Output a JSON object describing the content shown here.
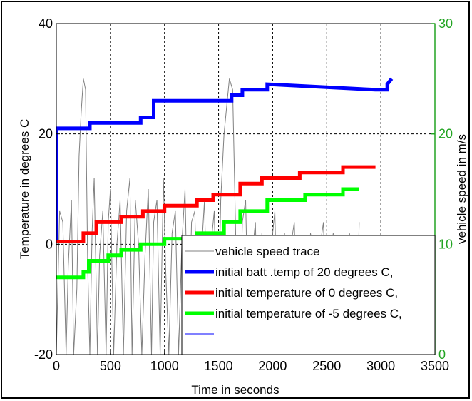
{
  "chart_data": {
    "type": "line",
    "xlabel": "Time in seconds",
    "ylabel_left": "Temperature in degrees C",
    "ylabel_right": "vehicle speed in m/s",
    "xlim": [
      0,
      3500
    ],
    "ylim_left": [
      -20,
      40
    ],
    "ylim_right": [
      0,
      30
    ],
    "x_ticks": [
      "0",
      "500",
      "1000",
      "1500",
      "2000",
      "2500",
      "3000",
      "3500"
    ],
    "y_ticks_left": [
      "-20",
      "0",
      "20",
      "40"
    ],
    "y_ticks_right": [
      "0",
      "10",
      "20",
      "30"
    ],
    "grid": true,
    "legend_position": "lower-right",
    "colors": {
      "speed": "#808080",
      "blue": "#0000ff",
      "red": "#ff0000",
      "green": "#00ff00",
      "right_axis": "#22a422"
    },
    "series": [
      {
        "name": "initial  batt .temp of 20 degrees C,",
        "color": "#0000ff",
        "axis": "left",
        "x": [
          0,
          0,
          10,
          310,
          310,
          780,
          780,
          900,
          900,
          1620,
          1620,
          1720,
          1720,
          1950,
          1950,
          2950,
          2950,
          3060,
          3060,
          3100
        ],
        "y": [
          0.5,
          21,
          21,
          21,
          22,
          22,
          23,
          23,
          26,
          26,
          27,
          27,
          28,
          28,
          29,
          28,
          28,
          28,
          29,
          30
        ]
      },
      {
        "name": "initial temperature of 0 degrees C,",
        "color": "#ff0000",
        "axis": "left",
        "x": [
          0,
          250,
          250,
          370,
          370,
          600,
          600,
          800,
          800,
          1000,
          1000,
          1300,
          1300,
          1450,
          1450,
          1700,
          1700,
          1900,
          1900,
          2250,
          2250,
          2650,
          2650,
          2950
        ],
        "y": [
          0.5,
          0.5,
          2,
          2,
          4,
          4,
          5,
          5,
          6,
          6,
          7,
          7,
          8,
          8,
          9,
          9,
          11,
          11,
          12,
          12,
          13,
          13,
          14,
          14
        ]
      },
      {
        "name": "initial temperature of -5 degrees C,",
        "color": "#00ff00",
        "axis": "left",
        "x": [
          0,
          250,
          250,
          300,
          300,
          480,
          480,
          600,
          600,
          780,
          780,
          1000,
          1000,
          1300,
          1300,
          1550,
          1550,
          1700,
          1700,
          1950,
          1950,
          2300,
          2300,
          2650,
          2650,
          2800
        ],
        "y": [
          -6,
          -6,
          -5,
          -5,
          -3,
          -3,
          -2,
          -2,
          -1,
          -1,
          0,
          0,
          1,
          1,
          2,
          2,
          4,
          4,
          6,
          6,
          8,
          8,
          9,
          9,
          10,
          10
        ]
      },
      {
        "name": "vehicle speed trace",
        "color": "#808080",
        "axis": "right",
        "x": [
          0,
          30,
          60,
          90,
          110,
          140,
          160,
          190,
          210,
          230,
          250,
          270,
          290,
          310,
          330,
          350,
          380,
          400,
          430,
          460,
          480,
          500,
          530,
          560,
          590,
          620,
          650,
          680,
          700,
          730,
          760,
          790,
          820,
          850,
          880,
          900,
          930,
          960,
          990,
          1010,
          1040,
          1070,
          1100,
          1130,
          1160,
          1190,
          1220,
          1250,
          1280,
          1310,
          1340,
          1370,
          1400,
          1430,
          1460,
          1490,
          1520,
          1550,
          1580,
          1600,
          1630,
          1660,
          1690,
          1720,
          1750,
          1780,
          1810,
          1840,
          1870,
          1900,
          1930,
          1960,
          1990,
          2020,
          2050,
          2080,
          2110,
          2140,
          2170,
          2200,
          2230,
          2260,
          2290,
          2320,
          2350,
          2380,
          2410,
          2440,
          2470,
          2500,
          2530,
          2560,
          2590,
          2620,
          2650,
          2680,
          2710,
          2740,
          2770,
          2800
        ],
        "y": [
          0,
          13,
          12,
          0,
          8,
          14,
          0,
          6,
          18,
          22,
          25,
          24,
          8,
          0,
          11,
          16,
          0,
          9,
          13,
          0,
          12,
          15,
          0,
          10,
          14,
          0,
          13,
          16,
          0,
          14,
          10,
          0,
          9,
          15,
          0,
          12,
          14,
          0,
          16,
          8,
          0,
          11,
          13,
          0,
          10,
          15,
          0,
          12,
          13,
          0,
          9,
          14,
          0,
          10,
          13,
          0,
          14,
          20,
          23,
          25,
          24,
          10,
          0,
          12,
          14,
          0,
          9,
          12,
          0,
          11,
          8,
          0,
          10,
          13,
          0,
          9,
          11,
          0,
          10,
          12,
          0,
          8,
          10,
          0,
          11,
          9,
          0,
          10,
          12,
          0,
          9,
          11,
          0,
          10,
          8,
          0,
          11,
          9,
          0,
          12
        ]
      }
    ],
    "legend": [
      {
        "label": "vehicle speed trace",
        "color": "#808080"
      },
      {
        "label": "initial  batt .temp of 20 degrees C,",
        "color": "#0000ff"
      },
      {
        "label": "initial temperature of 0 degrees C,",
        "color": "#ff0000"
      },
      {
        "label": "initial temperature of -5 degrees C,",
        "color": "#00ff00"
      },
      {
        "label": "",
        "color": "#0000ff"
      }
    ]
  }
}
